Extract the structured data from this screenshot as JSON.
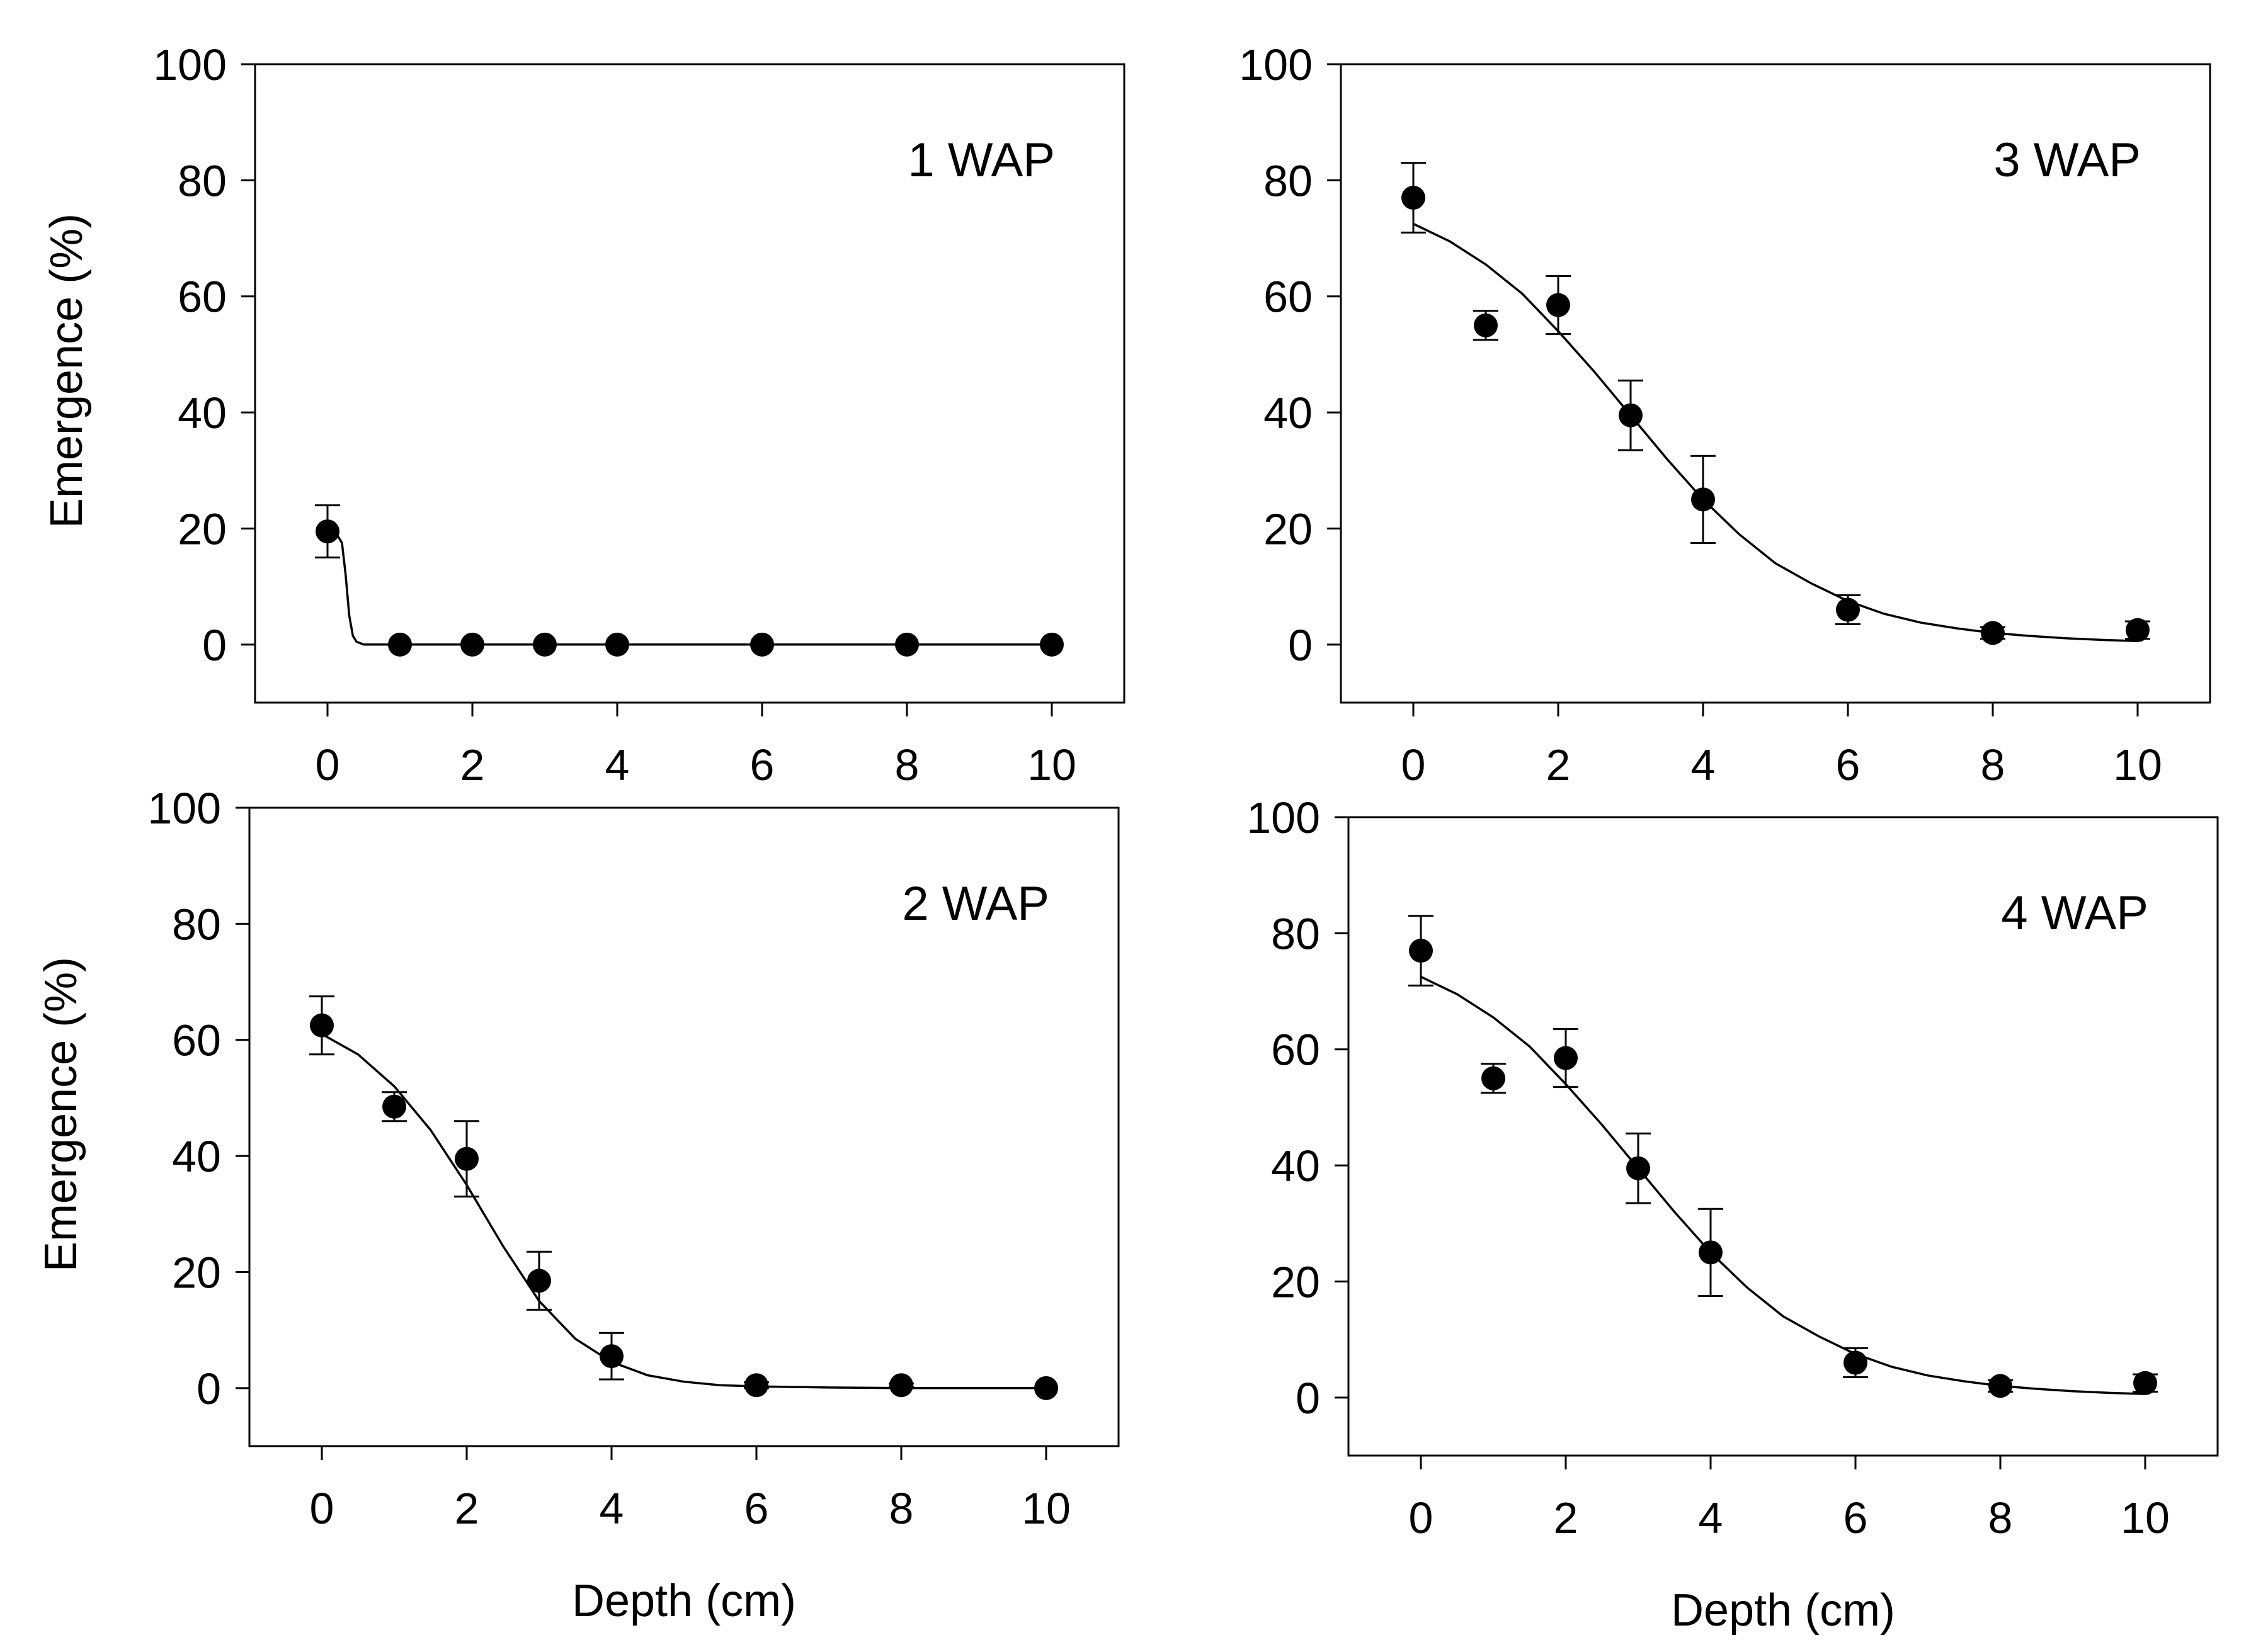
{
  "figure": {
    "x_axis_title": "Depth (cm)",
    "y_axis_title": "Emergence (%)"
  },
  "style": {
    "ink": "#000000",
    "background": "#ffffff"
  },
  "chart_data": [
    {
      "type": "scatter",
      "title": "1 WAP",
      "xlabel": "",
      "ylabel": "Emergence (%)",
      "xlim": [
        -1,
        11
      ],
      "ylim": [
        -10,
        100
      ],
      "xticks": [
        0,
        2,
        4,
        6,
        8,
        10
      ],
      "yticks": [
        0,
        20,
        40,
        60,
        80,
        100
      ],
      "x": [
        0,
        1,
        2,
        3,
        4,
        6,
        8,
        10
      ],
      "y": [
        19.5,
        0,
        0,
        0,
        0,
        0,
        0,
        0
      ],
      "error": [
        4.5,
        0,
        0,
        0,
        0,
        0,
        0,
        0
      ],
      "fit_curve": {
        "x": [
          0,
          0.1,
          0.2,
          0.25,
          0.3,
          0.35,
          0.4,
          0.5,
          0.7,
          1,
          2,
          4,
          6,
          8,
          10
        ],
        "y": [
          20,
          19.6,
          17.5,
          12,
          5,
          1.5,
          0.5,
          0,
          0,
          0,
          0,
          0,
          0,
          0,
          0
        ]
      }
    },
    {
      "type": "scatter",
      "title": "3 WAP",
      "xlabel": "",
      "ylabel": "",
      "xlim": [
        -1,
        11
      ],
      "ylim": [
        -10,
        100
      ],
      "xticks": [
        0,
        2,
        4,
        6,
        8,
        10
      ],
      "yticks": [
        0,
        20,
        40,
        60,
        80,
        100
      ],
      "x": [
        0,
        1,
        2,
        3,
        4,
        6,
        8,
        10
      ],
      "y": [
        77,
        55,
        58.5,
        39.5,
        25,
        6,
        2,
        2.5
      ],
      "error": [
        6,
        2.5,
        5,
        6,
        7.5,
        2.5,
        1,
        1.5
      ],
      "fit_curve": {
        "x": [
          0,
          0.5,
          1,
          1.5,
          2,
          2.5,
          3,
          3.5,
          4,
          4.5,
          5,
          5.5,
          6,
          6.5,
          7,
          7.5,
          8,
          8.5,
          9,
          9.5,
          10
        ],
        "y": [
          72.5,
          69.5,
          65.5,
          60.5,
          54,
          47,
          39.5,
          32,
          25,
          19,
          14,
          10.5,
          7.5,
          5.3,
          3.8,
          2.8,
          2,
          1.5,
          1.1,
          0.8,
          0.6
        ]
      }
    },
    {
      "type": "scatter",
      "title": "2 WAP",
      "xlabel": "Depth (cm)",
      "ylabel": "Emergence (%)",
      "xlim": [
        -1,
        11
      ],
      "ylim": [
        -10,
        100
      ],
      "xticks": [
        0,
        2,
        4,
        6,
        8,
        10
      ],
      "yticks": [
        0,
        20,
        40,
        60,
        80,
        100
      ],
      "x": [
        0,
        1,
        2,
        3,
        4,
        6,
        8,
        10
      ],
      "y": [
        62.5,
        48.5,
        39.5,
        18.5,
        5.5,
        0.5,
        0.5,
        0
      ],
      "error": [
        5,
        2.5,
        6.5,
        5,
        4,
        0.5,
        0.3,
        0
      ],
      "fit_curve": {
        "x": [
          0,
          0.5,
          1,
          1.5,
          2,
          2.5,
          3,
          3.5,
          4,
          4.5,
          5,
          5.5,
          6,
          7,
          8,
          9,
          10
        ],
        "y": [
          61,
          57.5,
          52,
          44.5,
          35,
          24.5,
          15,
          8.5,
          4.5,
          2.2,
          1.1,
          0.5,
          0.3,
          0.1,
          0,
          0,
          0
        ]
      }
    },
    {
      "type": "scatter",
      "title": "4 WAP",
      "xlabel": "Depth (cm)",
      "ylabel": "",
      "xlim": [
        -1,
        11
      ],
      "ylim": [
        -10,
        100
      ],
      "xticks": [
        0,
        2,
        4,
        6,
        8,
        10
      ],
      "yticks": [
        0,
        20,
        40,
        60,
        80,
        100
      ],
      "x": [
        0,
        1,
        2,
        3,
        4,
        6,
        8,
        10
      ],
      "y": [
        77,
        55,
        58.5,
        39.5,
        25,
        6,
        2,
        2.5
      ],
      "error": [
        6,
        2.5,
        5,
        6,
        7.5,
        2.5,
        1,
        1.5
      ],
      "fit_curve": {
        "x": [
          0,
          0.5,
          1,
          1.5,
          2,
          2.5,
          3,
          3.5,
          4,
          4.5,
          5,
          5.5,
          6,
          6.5,
          7,
          7.5,
          8,
          8.5,
          9,
          9.5,
          10
        ],
        "y": [
          72.5,
          69.5,
          65.5,
          60.5,
          54,
          47,
          39.5,
          32,
          25,
          19,
          14,
          10.5,
          7.5,
          5.3,
          3.8,
          2.8,
          2,
          1.5,
          1.1,
          0.8,
          0.6
        ]
      }
    }
  ]
}
